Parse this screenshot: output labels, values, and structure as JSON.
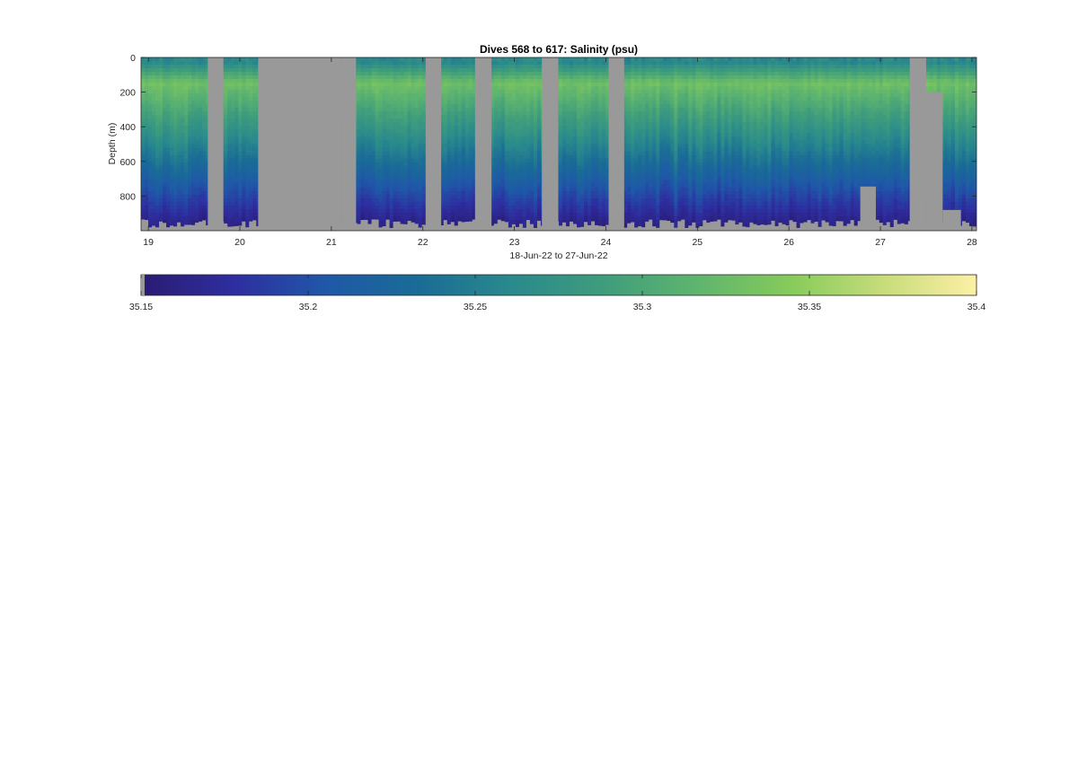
{
  "chart_data": {
    "type": "heatmap",
    "title": "Dives 568 to 617: Salinity (psu)",
    "xlabel": "18-Jun-22 to 27-Jun-22",
    "ylabel": "Depth (m)",
    "x_ticks": [
      "19",
      "20",
      "21",
      "22",
      "23",
      "24",
      "25",
      "26",
      "27",
      "28"
    ],
    "x_tick_values": [
      19,
      20,
      21,
      22,
      23,
      24,
      25,
      26,
      27,
      28
    ],
    "xlim": [
      18.92,
      28.05
    ],
    "y_ticks": [
      "0",
      "200",
      "400",
      "600",
      "800"
    ],
    "y_tick_values": [
      0,
      200,
      400,
      600,
      800
    ],
    "ylim": [
      0,
      1000
    ],
    "y_reversed": true,
    "grid": false,
    "missing_color": "#999999",
    "colorbar": {
      "orientation": "horizontal",
      "placement": "below",
      "range": [
        35.15,
        35.4
      ],
      "ticks": [
        "35.15",
        "35.2",
        "35.25",
        "35.3",
        "35.35",
        "35.4"
      ],
      "tick_values": [
        35.15,
        35.2,
        35.25,
        35.3,
        35.35,
        35.4
      ],
      "colormap": [
        "#2a1b73",
        "#2e2ea0",
        "#1f58a8",
        "#1a6c96",
        "#2a8a8c",
        "#3f9d7c",
        "#5fb56e",
        "#86cb5a",
        "#c7dc7a",
        "#fdf0a6"
      ]
    },
    "missing_intervals": [
      [
        19.65,
        19.82
      ],
      [
        20.2,
        21.1
      ],
      [
        21.1,
        21.27
      ],
      [
        22.03,
        22.2
      ],
      [
        22.57,
        22.75
      ],
      [
        23.3,
        23.48
      ],
      [
        24.03,
        24.2
      ],
      [
        27.32,
        27.5
      ]
    ],
    "partial_gaps": [
      {
        "x0": 20.35,
        "x1": 20.55,
        "from_depth": 180
      },
      {
        "x0": 20.73,
        "x1": 21.1,
        "from_depth": 395
      },
      {
        "x0": 26.78,
        "x1": 26.95,
        "from_depth": 745
      },
      {
        "x0": 27.5,
        "x1": 27.68,
        "from_depth": 200
      },
      {
        "x0": 27.68,
        "x1": 27.88,
        "from_depth": 880
      }
    ],
    "profile_structure": {
      "surface_salinity": 35.26,
      "max_salinity": 35.33,
      "max_salinity_depth": 150,
      "deep_salinity": 35.16,
      "bottom_depth_range": [
        935,
        985
      ]
    }
  }
}
